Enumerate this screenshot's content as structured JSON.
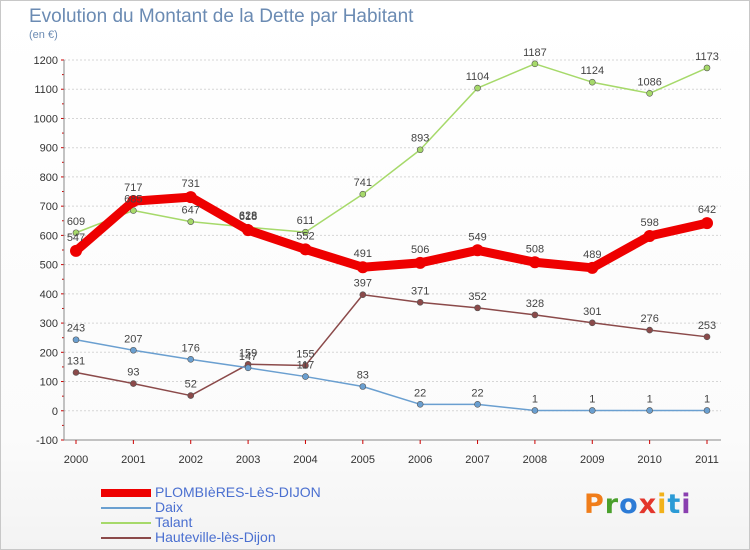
{
  "header": {
    "title": "Evolution du Montant de la Dette par Habitant",
    "subtitle": "(en €)"
  },
  "logo": {
    "text": "Proxiti",
    "colors": [
      "#f07d1a",
      "#4aa02c",
      "#2c7bd6",
      "#e3362c",
      "#f2b21b",
      "#2c9bd6",
      "#8a3fb0"
    ]
  },
  "chart_data": {
    "type": "line",
    "title": "Evolution du Montant de la Dette par Habitant",
    "subtitle": "(en €)",
    "xlabel": "",
    "ylabel": "",
    "x": [
      "2000",
      "2001",
      "2002",
      "2003",
      "2004",
      "2005",
      "2006",
      "2007",
      "2008",
      "2009",
      "2010",
      "2011"
    ],
    "ylim": [
      -100,
      1200
    ],
    "yticks": [
      -100,
      0,
      100,
      200,
      300,
      400,
      500,
      600,
      700,
      800,
      900,
      1000,
      1100,
      1200
    ],
    "grid": "horizontal",
    "legend_position": "bottom-left",
    "series": [
      {
        "name": "PLOMBIèRES-LèS-DIJON",
        "color": "#ee0000",
        "width": 9,
        "values": [
          547,
          717,
          731,
          618,
          552,
          491,
          506,
          549,
          508,
          489,
          598,
          642
        ],
        "labels": [
          "547",
          "717",
          "731",
          "618",
          "552",
          "491",
          "506",
          "549",
          "508",
          "489",
          "598",
          "642"
        ]
      },
      {
        "name": "Daix",
        "color": "#6a9fd0",
        "width": 1.5,
        "values": [
          243,
          207,
          176,
          147,
          117,
          83,
          22,
          22,
          1,
          1,
          1,
          1
        ],
        "labels": [
          "243",
          "207",
          "176",
          "147",
          "117",
          "83",
          "22",
          "22",
          "1",
          "1",
          "1",
          "1"
        ]
      },
      {
        "name": "Talant",
        "color": "#a6d96a",
        "width": 1.5,
        "values": [
          609,
          685,
          647,
          628,
          611,
          741,
          893,
          1104,
          1187,
          1124,
          1086,
          1173
        ],
        "labels": [
          "609",
          "685",
          "647",
          "628",
          "611",
          "741",
          "893",
          "1104",
          "1187",
          "1124",
          "1086",
          "1173"
        ]
      },
      {
        "name": "Hauteville-lès-Dijon",
        "color": "#8b4a4a",
        "width": 1.5,
        "values": [
          131,
          93,
          52,
          159,
          155,
          397,
          371,
          352,
          328,
          301,
          276,
          253
        ],
        "labels": [
          "131",
          "93",
          "52",
          "159",
          "155",
          "397",
          "371",
          "352",
          "328",
          "301",
          "276",
          "253"
        ]
      }
    ]
  }
}
